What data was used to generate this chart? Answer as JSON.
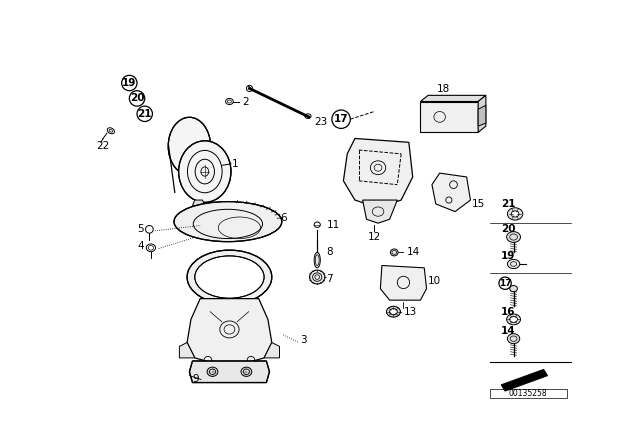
{
  "bg_color": "#ffffff",
  "fig_width": 6.4,
  "fig_height": 4.48,
  "dpi": 100,
  "watermark": "00135258",
  "lc": "#000000"
}
